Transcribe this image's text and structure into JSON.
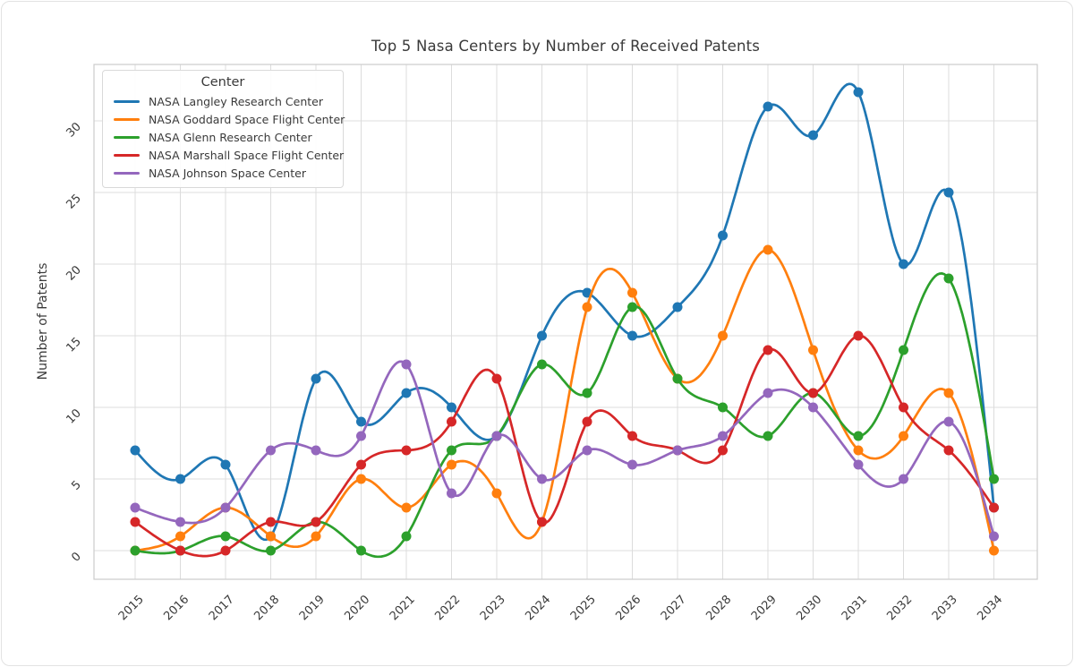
{
  "chart_data": {
    "type": "line",
    "title": "Top 5 Nasa Centers by Number of Received Patents",
    "xlabel": "",
    "ylabel": "Number of Patents",
    "x": [
      2015,
      2016,
      2017,
      2018,
      2019,
      2020,
      2021,
      2022,
      2023,
      2024,
      2025,
      2026,
      2027,
      2028,
      2029,
      2030,
      2031,
      2032,
      2033,
      2034
    ],
    "yticks": [
      0,
      5,
      10,
      15,
      20,
      25,
      30
    ],
    "ylim": [
      -2,
      34
    ],
    "grid": true,
    "smooth": true,
    "marker": "circle",
    "legend": {
      "title": "Center",
      "position": "upper-left"
    },
    "series": [
      {
        "name": "NASA Langley Research Center",
        "color": "#1f77b4",
        "values": [
          7,
          5,
          6,
          1,
          12,
          9,
          11,
          10,
          8,
          15,
          18,
          15,
          17,
          22,
          31,
          29,
          32,
          20,
          25,
          3
        ]
      },
      {
        "name": "NASA Goddard Space Flight Center",
        "color": "#ff7f0e",
        "values": [
          0,
          1,
          3,
          1,
          1,
          5,
          3,
          6,
          4,
          2,
          17,
          18,
          12,
          15,
          21,
          14,
          7,
          8,
          11,
          0
        ]
      },
      {
        "name": "NASA Glenn Research Center",
        "color": "#2ca02c",
        "values": [
          0,
          0,
          1,
          0,
          2,
          0,
          1,
          7,
          8,
          13,
          11,
          17,
          12,
          10,
          8,
          11,
          8,
          14,
          19,
          5
        ]
      },
      {
        "name": "NASA Marshall Space Flight Center",
        "color": "#d62728",
        "values": [
          2,
          0,
          0,
          2,
          2,
          6,
          7,
          9,
          12,
          2,
          9,
          8,
          7,
          7,
          14,
          11,
          15,
          10,
          7,
          3
        ]
      },
      {
        "name": "NASA Johnson Space Center",
        "color": "#9467bd",
        "values": [
          3,
          2,
          3,
          7,
          7,
          8,
          13,
          4,
          8,
          5,
          7,
          6,
          7,
          8,
          11,
          10,
          6,
          5,
          9,
          1
        ]
      }
    ],
    "style": {
      "grid_color": "#dcdcdc",
      "frame_color": "#cccccc",
      "text_color": "#3a3a3a",
      "background": "#ffffff"
    }
  }
}
